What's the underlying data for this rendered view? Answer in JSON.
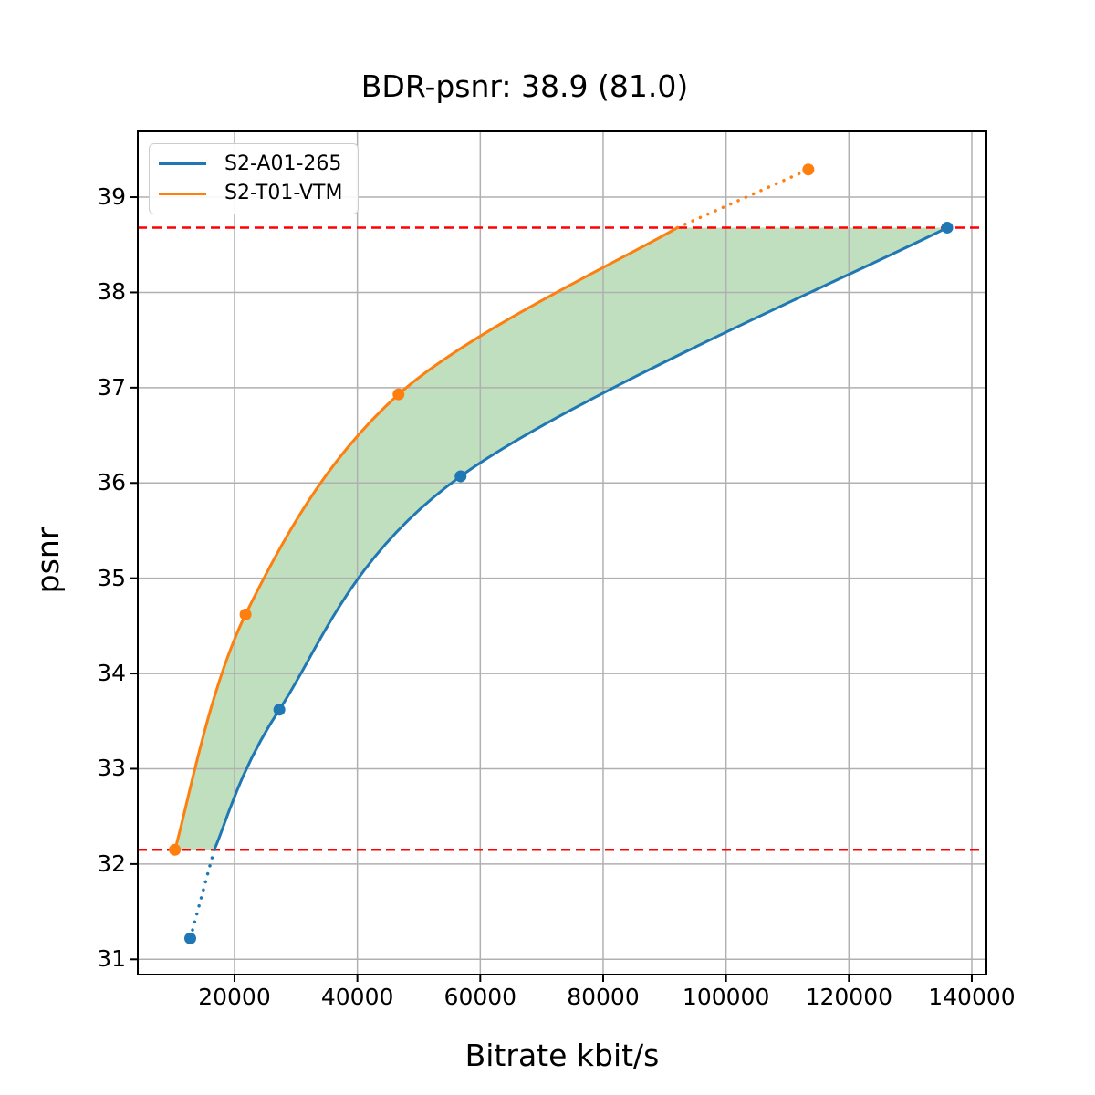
{
  "title": "BDR-psnr: 38.9 (81.0)",
  "chart_data": {
    "type": "line",
    "title": "BDR-psnr: 38.9 (81.0)",
    "xlabel": "Bitrate kbit/s",
    "ylabel": "psnr",
    "xlim": [
      4260,
      142380
    ],
    "ylim": [
      30.84,
      39.69
    ],
    "x_ticks": [
      20000,
      40000,
      60000,
      80000,
      100000,
      120000,
      140000
    ],
    "y_ticks": [
      31,
      32,
      33,
      34,
      35,
      36,
      37,
      38,
      39
    ],
    "grid": true,
    "grid_color": "#b0b0b0",
    "legend_position": "upper left",
    "bdr_psnr": 38.9,
    "bdr_rate_pct": 81.0,
    "series": [
      {
        "name": "S2-A01-265",
        "color": "#1f77b4",
        "points": [
          [
            12800,
            31.22
          ],
          [
            27300,
            33.62
          ],
          [
            56800,
            36.07
          ],
          [
            136000,
            38.68
          ]
        ],
        "solid": [
          [
            16700,
            32.15
          ],
          [
            27300,
            33.62
          ],
          [
            56800,
            36.07
          ],
          [
            136000,
            38.68
          ]
        ],
        "dotted": [
          [
            16700,
            32.15
          ],
          [
            12800,
            31.22
          ]
        ]
      },
      {
        "name": "S2-T01-VTM",
        "color": "#ff7f0e",
        "points": [
          [
            10300,
            32.15
          ],
          [
            21800,
            34.62
          ],
          [
            46700,
            36.93
          ],
          [
            113400,
            39.29
          ]
        ],
        "solid": [
          [
            10300,
            32.15
          ],
          [
            21800,
            34.62
          ],
          [
            46700,
            36.93
          ],
          [
            92100,
            38.68
          ]
        ],
        "dotted": [
          [
            92100,
            38.68
          ],
          [
            113400,
            39.29
          ]
        ]
      }
    ],
    "hlines": [
      {
        "y": 38.68,
        "color": "#ff0000",
        "style": "dashed"
      },
      {
        "y": 32.15,
        "color": "#ff0000",
        "style": "dashed"
      }
    ],
    "shaded_region": {
      "between": [
        "S2-T01-VTM",
        "S2-A01-265"
      ],
      "color": "#008000",
      "opacity": 0.25
    }
  }
}
